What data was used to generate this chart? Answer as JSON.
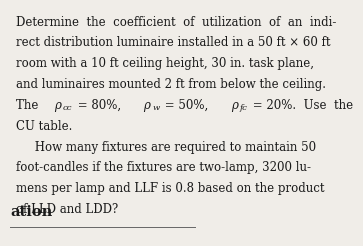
{
  "background_color": "#f0ede8",
  "text_color": "#1a1a1a",
  "lines": [
    "Determine  the  coefficient  of  utilization  of  an  indi-",
    "rect distribution luminaire installed in a 50 ft × 60 ft",
    "room with a 10 ft ceiling height, 30 in. task plane,",
    "and luminaires mounted 2 ft from below the ceiling.",
    "CU table.",
    "     How many fixtures are required to maintain 50",
    "foot-candles if the fixtures are two-lamp, 3200 lu-",
    "mens per lamp and LLF is 0.8 based on the product",
    "of LLD and LDD?"
  ],
  "line5_normal_before": "The  ",
  "line5_rho_cc": "ρ",
  "line5_cc": "cc",
  "line5_eq1": " = 80%,  ",
  "line5_rho_w": "ρ",
  "line5_w": "w",
  "line5_eq2": " = 50%,  ",
  "line5_rho_fc": "ρ",
  "line5_fc": "fc",
  "line5_end": " = 20%.  Use  the",
  "footer_text": "ation",
  "fontsize": 8.5,
  "footer_fontsize": 10.5,
  "font_family": "DejaVu Serif"
}
